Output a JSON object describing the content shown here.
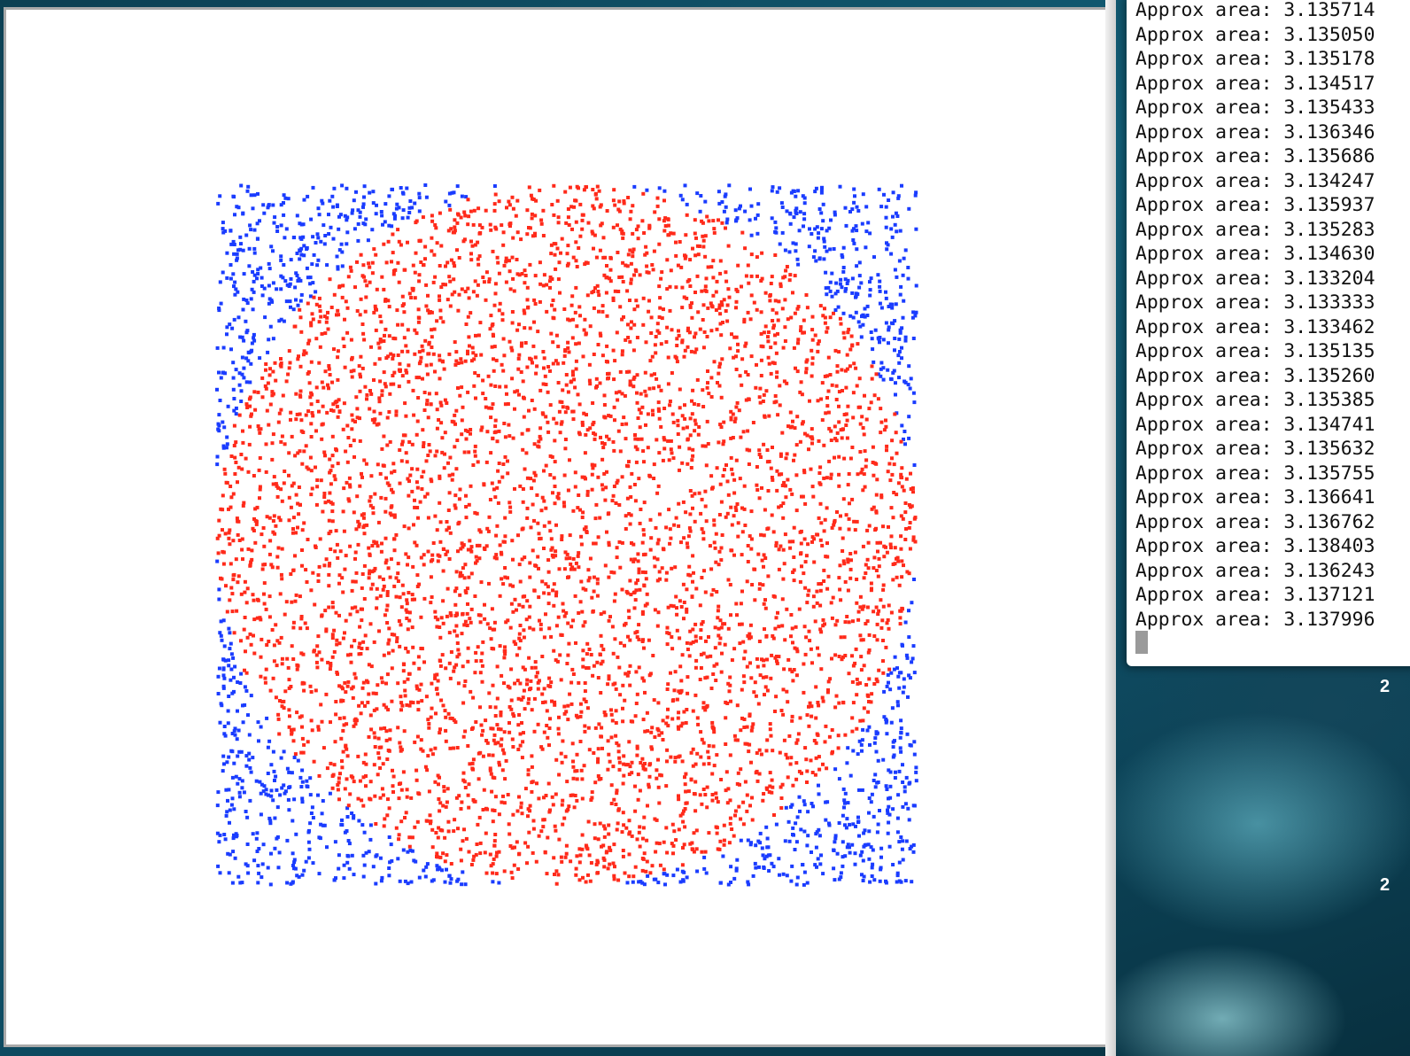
{
  "terminal": {
    "lines": [
      "Approx area: 3.135714",
      "Approx area: 3.135050",
      "Approx area: 3.135178",
      "Approx area: 3.134517",
      "Approx area: 3.135433",
      "Approx area: 3.136346",
      "Approx area: 3.135686",
      "Approx area: 3.134247",
      "Approx area: 3.135937",
      "Approx area: 3.135283",
      "Approx area: 3.134630",
      "Approx area: 3.133204",
      "Approx area: 3.133333",
      "Approx area: 3.133462",
      "Approx area: 3.135135",
      "Approx area: 3.135260",
      "Approx area: 3.135385",
      "Approx area: 3.134741",
      "Approx area: 3.135632",
      "Approx area: 3.135755",
      "Approx area: 3.136641",
      "Approx area: 3.136762",
      "Approx area: 3.138403",
      "Approx area: 3.136243",
      "Approx area: 3.137121",
      "Approx area: 3.137996"
    ],
    "cursor_icon": "block-cursor"
  },
  "desktop": {
    "clock_fragments": [
      "2",
      "2"
    ]
  },
  "chart_data": {
    "type": "scatter",
    "title": "",
    "xlabel": "",
    "ylabel": "",
    "xlim": [
      -1,
      1
    ],
    "ylim": [
      -1,
      1
    ],
    "grid": false,
    "approx_point_count": 6000,
    "series": [
      {
        "category": "inside-circle",
        "color": "#ff2a1a"
      },
      {
        "category": "outside-circle",
        "color": "#1a3cff"
      }
    ]
  }
}
